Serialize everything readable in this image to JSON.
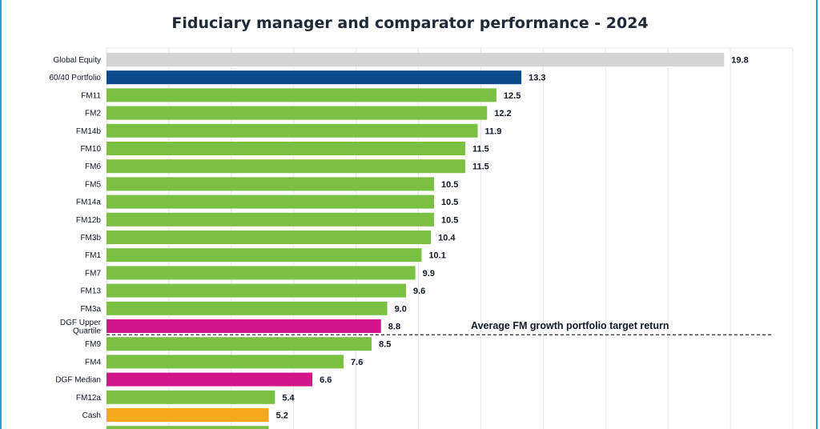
{
  "chart_data": {
    "type": "bar",
    "orientation": "horizontal",
    "title": "Fiduciary manager and comparator performance - 2024",
    "xlim": [
      0,
      22
    ],
    "grid": true,
    "categories": [
      "Global Equity",
      "60/40 Portfolio",
      "FM11",
      "FM2",
      "FM14b",
      "FM10",
      "FM6",
      "FM5",
      "FM14a",
      "FM12b",
      "FM3b",
      "FM1",
      "FM7",
      "FM13",
      "FM3a",
      "DGF Upper|Quartile",
      "FM9",
      "FM4",
      "DGF Median",
      "FM12a",
      "Cash",
      ""
    ],
    "values": [
      19.8,
      13.3,
      12.5,
      12.2,
      11.9,
      11.5,
      11.5,
      10.5,
      10.5,
      10.5,
      10.4,
      10.1,
      9.9,
      9.6,
      9.0,
      8.8,
      8.5,
      7.6,
      6.6,
      5.4,
      5.2,
      5.2
    ],
    "value_labels": [
      "19.8",
      "13.3",
      "12.5",
      "12.2",
      "11.9",
      "11.5",
      "11.5",
      "10.5",
      "10.5",
      "10.5",
      "10.4",
      "10.1",
      "9.9",
      "9.6",
      "9.0",
      "8.8",
      "8.5",
      "7.6",
      "6.6",
      "5.4",
      "5.2",
      ""
    ],
    "colors": [
      "#d4d4d4",
      "#0b4a8c",
      "#79c043",
      "#79c043",
      "#79c043",
      "#79c043",
      "#79c043",
      "#79c043",
      "#79c043",
      "#79c043",
      "#79c043",
      "#79c043",
      "#79c043",
      "#79c043",
      "#79c043",
      "#d4148a",
      "#79c043",
      "#79c043",
      "#d4148a",
      "#79c043",
      "#f5a81c",
      "#79c043"
    ],
    "annotation": {
      "text": "Average FM growth portfolio target return",
      "position_after_row": 15
    }
  }
}
